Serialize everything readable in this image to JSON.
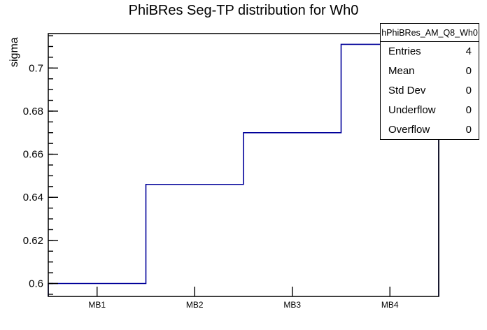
{
  "title": "PhiBRes Seg-TP distribution for Wh0",
  "chart_data": {
    "type": "bar",
    "style": "step-outline-histogram",
    "title": "PhiBRes Seg-TP distribution for Wh0",
    "categories": [
      "MB1",
      "MB2",
      "MB3",
      "MB4"
    ],
    "values": [
      0.6,
      0.646,
      0.67,
      0.711
    ],
    "xlabel": "",
    "ylabel": "sigma",
    "ylim": [
      0.594,
      0.716
    ],
    "yticks": [
      0.6,
      0.62,
      0.64,
      0.66,
      0.68,
      0.7
    ],
    "ytick_labels": [
      "0.6",
      "0.62",
      "0.64",
      "0.66",
      "0.68",
      "0.7"
    ],
    "minor_tick_step": 0.005,
    "grid": false,
    "legend_position": "none",
    "line_color": "#000099",
    "frame_color": "#000000",
    "background_color": "#ffffff"
  },
  "stats_box": {
    "header": "hPhiBRes_AM_Q8_Wh0",
    "rows": [
      {
        "label": "Entries",
        "value": "4"
      },
      {
        "label": "Mean",
        "value": "0"
      },
      {
        "label": "Std Dev",
        "value": "0"
      },
      {
        "label": "Underflow",
        "value": "0"
      },
      {
        "label": "Overflow",
        "value": "0"
      }
    ]
  }
}
